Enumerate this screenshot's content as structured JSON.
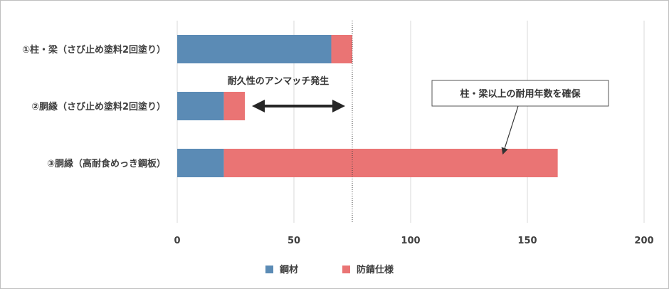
{
  "chart_data": {
    "type": "bar",
    "orientation": "horizontal",
    "stacked": true,
    "categories": [
      "①柱・梁（さび止め塗料2回塗り）",
      "②胴縁（さび止め塗料2回塗り）",
      "③胴縁（高耐食めっき鋼板）"
    ],
    "series": [
      {
        "name": "鋼材",
        "color": "#5b8bb5",
        "values": [
          66,
          20,
          20
        ]
      },
      {
        "name": "防錆仕様",
        "color": "#ea7474",
        "values": [
          9,
          9,
          143
        ]
      }
    ],
    "xlim": [
      0,
      200
    ],
    "xticks": [
      0,
      50,
      100,
      150,
      200
    ],
    "grid": true,
    "reference_line": {
      "x": 75,
      "style": "dotted"
    },
    "annotations": {
      "mismatch": "耐久性のアンマッチ発生",
      "callout": "柱・梁以上の耐用年数を確保"
    },
    "legend_position": "bottom"
  }
}
